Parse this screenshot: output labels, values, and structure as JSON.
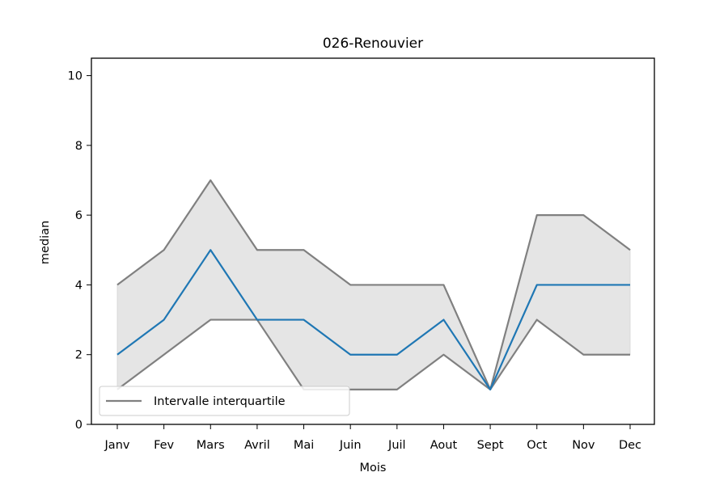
{
  "chart_data": {
    "type": "line",
    "title": "026-Renouvier",
    "xlabel": "Mois",
    "ylabel": "median",
    "categories": [
      "Janv",
      "Fev",
      "Mars",
      "Avril",
      "Mai",
      "Juin",
      "Juil",
      "Aout",
      "Sept",
      "Oct",
      "Nov",
      "Dec"
    ],
    "ylim": [
      0,
      10.5
    ],
    "yticks": [
      "0",
      "2",
      "4",
      "6",
      "8",
      "10"
    ],
    "grid": false,
    "legend": {
      "placement": "lower-left",
      "label": "Intervalle interquartile"
    },
    "series": [
      {
        "role": "median",
        "color": "#1f77b4",
        "values": [
          2,
          3,
          5,
          3,
          3,
          2,
          2,
          3,
          1,
          4,
          4,
          4
        ]
      },
      {
        "role": "q3",
        "color": "#808080",
        "values": [
          4,
          5,
          7,
          5,
          5,
          4,
          4,
          4,
          1,
          6,
          6,
          5
        ]
      },
      {
        "role": "q1",
        "color": "#808080",
        "values": [
          1,
          2,
          3,
          3,
          1,
          1,
          1,
          2,
          1,
          3,
          2,
          2
        ]
      }
    ],
    "band_color": "#e5e5e5"
  }
}
